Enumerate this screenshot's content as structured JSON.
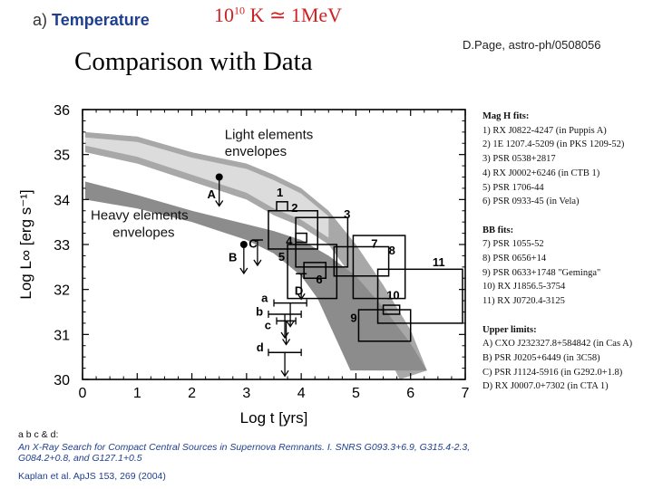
{
  "header": {
    "label_letter": "a)",
    "label_word": "Temperature",
    "equation_mantissa": "10",
    "equation_exponent": "10",
    "equation_rest": " K ≃ 1MeV",
    "reference": "D.Page, astro-ph/0508056",
    "title": "Comparison with Data"
  },
  "chart_data": {
    "type": "scatter",
    "title": "",
    "xlabel": "Log t [yrs]",
    "ylabel": "Log L∞ [erg s⁻¹]",
    "xlim": [
      0,
      7
    ],
    "ylim": [
      30,
      36
    ],
    "xticks": [
      "0",
      "1",
      "2",
      "3",
      "4",
      "5",
      "6",
      "7"
    ],
    "yticks": [
      "30",
      "31",
      "32",
      "33",
      "34",
      "35",
      "36"
    ],
    "bands": [
      {
        "name": "Light elements envelopes",
        "color": "#a8a8a8",
        "upper": [
          [
            0.05,
            35.5
          ],
          [
            1.0,
            35.4
          ],
          [
            2.0,
            35.05
          ],
          [
            3.0,
            34.8
          ],
          [
            3.5,
            34.55
          ],
          [
            4.0,
            34.25
          ],
          [
            4.5,
            33.75
          ],
          [
            5.0,
            33.0
          ],
          [
            5.5,
            32.1
          ],
          [
            6.0,
            31.1
          ],
          [
            6.3,
            30.2
          ]
        ],
        "lower": [
          [
            5.8,
            30.0
          ],
          [
            5.4,
            31.0
          ],
          [
            5.1,
            31.8
          ],
          [
            4.8,
            32.5
          ],
          [
            4.5,
            33.0
          ],
          [
            4.0,
            33.4
          ],
          [
            3.5,
            33.65
          ],
          [
            3.0,
            34.0
          ],
          [
            2.0,
            34.4
          ],
          [
            1.0,
            34.8
          ],
          [
            0.05,
            35.05
          ]
        ]
      },
      {
        "name": "Heavy elements envelopes",
        "color": "#8c8c8c",
        "upper": [
          [
            0.05,
            34.4
          ],
          [
            1.0,
            34.1
          ],
          [
            2.0,
            33.75
          ],
          [
            3.0,
            33.45
          ],
          [
            3.5,
            33.3
          ],
          [
            4.0,
            33.1
          ],
          [
            4.5,
            32.75
          ],
          [
            5.0,
            32.3
          ],
          [
            5.5,
            31.6
          ],
          [
            6.0,
            30.8
          ],
          [
            6.3,
            30.2
          ]
        ],
        "lower": [
          [
            4.9,
            30.2
          ],
          [
            4.6,
            31.0
          ],
          [
            4.3,
            31.8
          ],
          [
            4.0,
            32.3
          ],
          [
            3.5,
            32.8
          ],
          [
            3.0,
            33.1
          ],
          [
            2.0,
            33.5
          ],
          [
            1.0,
            33.8
          ],
          [
            0.05,
            34.0
          ]
        ]
      }
    ],
    "band_labels": [
      {
        "text": "Light elements",
        "x": 2.6,
        "y": 35.35
      },
      {
        "text": "envelopes",
        "x": 2.6,
        "y": 34.97
      },
      {
        "text": "Heavy elements",
        "x": 0.15,
        "y": 33.55
      },
      {
        "text": "envelopes",
        "x": 0.55,
        "y": 33.17
      }
    ],
    "observations": [
      {
        "id": "1",
        "x": [
          3.55,
          3.75
        ],
        "y": [
          33.75,
          33.95
        ],
        "label_x": 3.55,
        "label_y": 34.07
      },
      {
        "id": "2",
        "x": [
          3.4,
          4.3
        ],
        "y": [
          32.9,
          33.75
        ],
        "label_x": 3.82,
        "label_y": 33.72
      },
      {
        "id": "3",
        "x": [
          3.9,
          4.85
        ],
        "y": [
          32.5,
          33.6
        ],
        "label_x": 4.78,
        "label_y": 33.58
      },
      {
        "id": "4",
        "x": [
          3.9,
          4.1
        ],
        "y": [
          33.05,
          33.25
        ],
        "label_x": 3.72,
        "label_y": 32.99
      },
      {
        "id": "5",
        "x": [
          3.75,
          4.65
        ],
        "y": [
          31.8,
          33.0
        ],
        "label_x": 3.58,
        "label_y": 32.64
      },
      {
        "id": "6",
        "x": [
          4.05,
          4.45
        ],
        "y": [
          32.25,
          32.6
        ],
        "label_x": 4.27,
        "label_y": 32.13
      },
      {
        "id": "7",
        "x": [
          4.6,
          5.6
        ],
        "y": [
          32.3,
          32.95
        ],
        "label_x": 5.28,
        "label_y": 32.93
      },
      {
        "id": "8",
        "x": [
          4.95,
          5.9
        ],
        "y": [
          31.8,
          33.2
        ],
        "label_x": 5.6,
        "label_y": 32.78
      },
      {
        "id": "9",
        "x": [
          5.05,
          6.0
        ],
        "y": [
          30.85,
          31.55
        ],
        "label_x": 4.9,
        "label_y": 31.28
      },
      {
        "id": "10",
        "x": [
          5.5,
          5.8
        ],
        "y": [
          31.45,
          31.65
        ],
        "label_x": 5.56,
        "label_y": 31.78
      },
      {
        "id": "11",
        "x": [
          5.4,
          6.95
        ],
        "y": [
          31.25,
          32.45
        ],
        "label_x": 6.4,
        "label_y": 32.52
      }
    ],
    "upper_limits": [
      {
        "id": "A",
        "t": 2.5,
        "L": 34.5,
        "marker": "dot",
        "label_x": 2.28,
        "label_y": 34.03
      },
      {
        "id": "B",
        "t": 2.95,
        "L": 33.0,
        "marker": "dot",
        "label_x": 2.67,
        "label_y": 32.63
      },
      {
        "id": "C",
        "t": 3.2,
        "L": 33.1,
        "marker": "bar",
        "label_x": 3.04,
        "label_y": 32.93
      },
      {
        "id": "D",
        "t": 4.0,
        "L": 32.35,
        "marker": "bar",
        "label_x": 3.88,
        "label_y": 31.88
      },
      {
        "id": "a",
        "t": [
          3.5,
          4.1
        ],
        "L": 31.7,
        "marker": "range",
        "label_x": 3.27,
        "label_y": 31.72
      },
      {
        "id": "b",
        "t": [
          3.4,
          4.0
        ],
        "L": 31.45,
        "marker": "range",
        "label_x": 3.17,
        "label_y": 31.42
      },
      {
        "id": "c",
        "t": [
          3.55,
          3.9
        ],
        "L": 31.3,
        "marker": "range",
        "label_x": 3.33,
        "label_y": 31.12
      },
      {
        "id": "d",
        "t": [
          3.4,
          4.0
        ],
        "L": 30.6,
        "marker": "range",
        "label_x": 3.18,
        "label_y": 30.62
      }
    ]
  },
  "legend": {
    "mag_h_title": "Mag H fits:",
    "mag_h_items": [
      "1) RX J0822-4247  (in Puppis A)",
      "2) 1E 1207.4-5209  (in PKS 1209-52)",
      "3) PSR 0538+2817",
      "4) RX J0002+6246 (in CTB 1)",
      "5) PSR 1706-44",
      "6) PSR 0933-45 (in Vela)"
    ],
    "bb_title": "BB fits:",
    "bb_items": [
      "7) PSR 1055-52",
      "8) PSR 0656+14",
      "9) PSR 0633+1748 \"Geminga\"",
      "10) RX J1856.5-3754",
      "11) RX J0720.4-3125"
    ],
    "upper_title": "Upper limits:",
    "upper_items": [
      "A) CXO J232327.8+584842 (in Cas A)",
      "B) PSR J0205+6449 (in 3C58)",
      "C) PSR J1124-5916 (in G292.0+1.8)",
      "D) RX J0007.0+7302 (in CTA 1)"
    ]
  },
  "citation": {
    "label": "a b c & d:",
    "paper": "An X-Ray Search for Compact Central Sources in Supernova Remnants. I. SNRS G093.3+6.9, G315.4-2.3, G084.2+0.8, and G127.1+0.5",
    "journal": "Kaplan et al. ApJS 153, 269 (2004)"
  },
  "colors": {
    "light_band": "#a8a8a8",
    "heavy_band": "#8c8c8c",
    "pale_band": "#dcdcdc",
    "axis": "#000000",
    "accent_blue": "#1f3f8f",
    "equation_red": "#cc2222"
  }
}
